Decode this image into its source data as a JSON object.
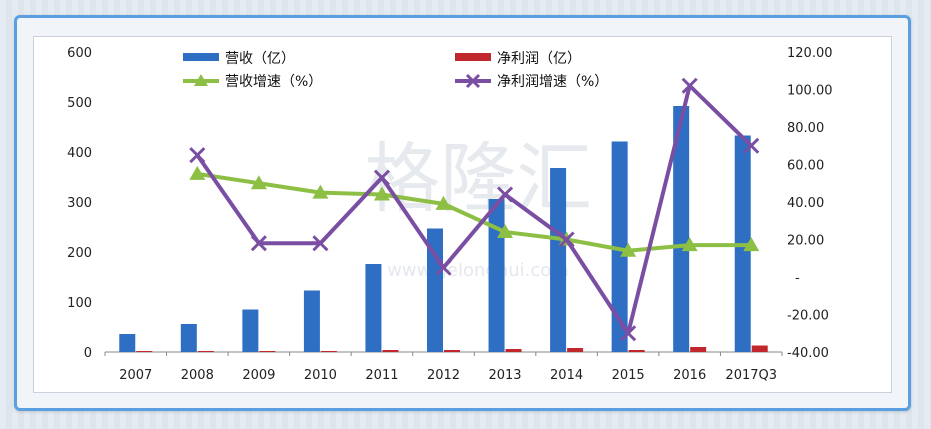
{
  "watermark": {
    "text": "格隆汇",
    "url": "www.gelonghui.com"
  },
  "chart_data": {
    "type": "bar",
    "categories": [
      "2007",
      "2008",
      "2009",
      "2010",
      "2011",
      "2012",
      "2013",
      "2014",
      "2015",
      "2016",
      "2017Q3"
    ],
    "series": [
      {
        "name": "营收（亿）",
        "type": "bar",
        "axis": "left",
        "color": "#2e6fc4",
        "values": [
          36,
          56,
          85,
          123,
          176,
          247,
          306,
          368,
          421,
          492,
          433
        ]
      },
      {
        "name": "净利润（亿）",
        "type": "bar",
        "axis": "left",
        "color": "#c0282d",
        "values": [
          2,
          2,
          2,
          2,
          4,
          4,
          6,
          8,
          4,
          10,
          13
        ]
      },
      {
        "name": "营收增速（%）",
        "type": "line",
        "axis": "right",
        "color": "#8dbf45",
        "marker": "triangle",
        "values": [
          null,
          55,
          50,
          45,
          44,
          39,
          24,
          20,
          14,
          17,
          17
        ]
      },
      {
        "name": "净利润增速（%）",
        "type": "line",
        "axis": "right",
        "color": "#7a4ea3",
        "marker": "x",
        "values": [
          null,
          65,
          18,
          18,
          53,
          5,
          44,
          20,
          -30,
          102,
          70
        ]
      }
    ],
    "left_axis": {
      "min": 0,
      "max": 600,
      "ticks": [
        "0",
        "100",
        "200",
        "300",
        "400",
        "500",
        "600"
      ]
    },
    "right_axis": {
      "min": -40,
      "max": 120,
      "ticks": [
        "-40.00",
        "-20.00",
        "-",
        "20.00",
        "40.00",
        "60.00",
        "80.00",
        "100.00",
        "120.00"
      ]
    },
    "legend_position": "top",
    "grid": false
  }
}
